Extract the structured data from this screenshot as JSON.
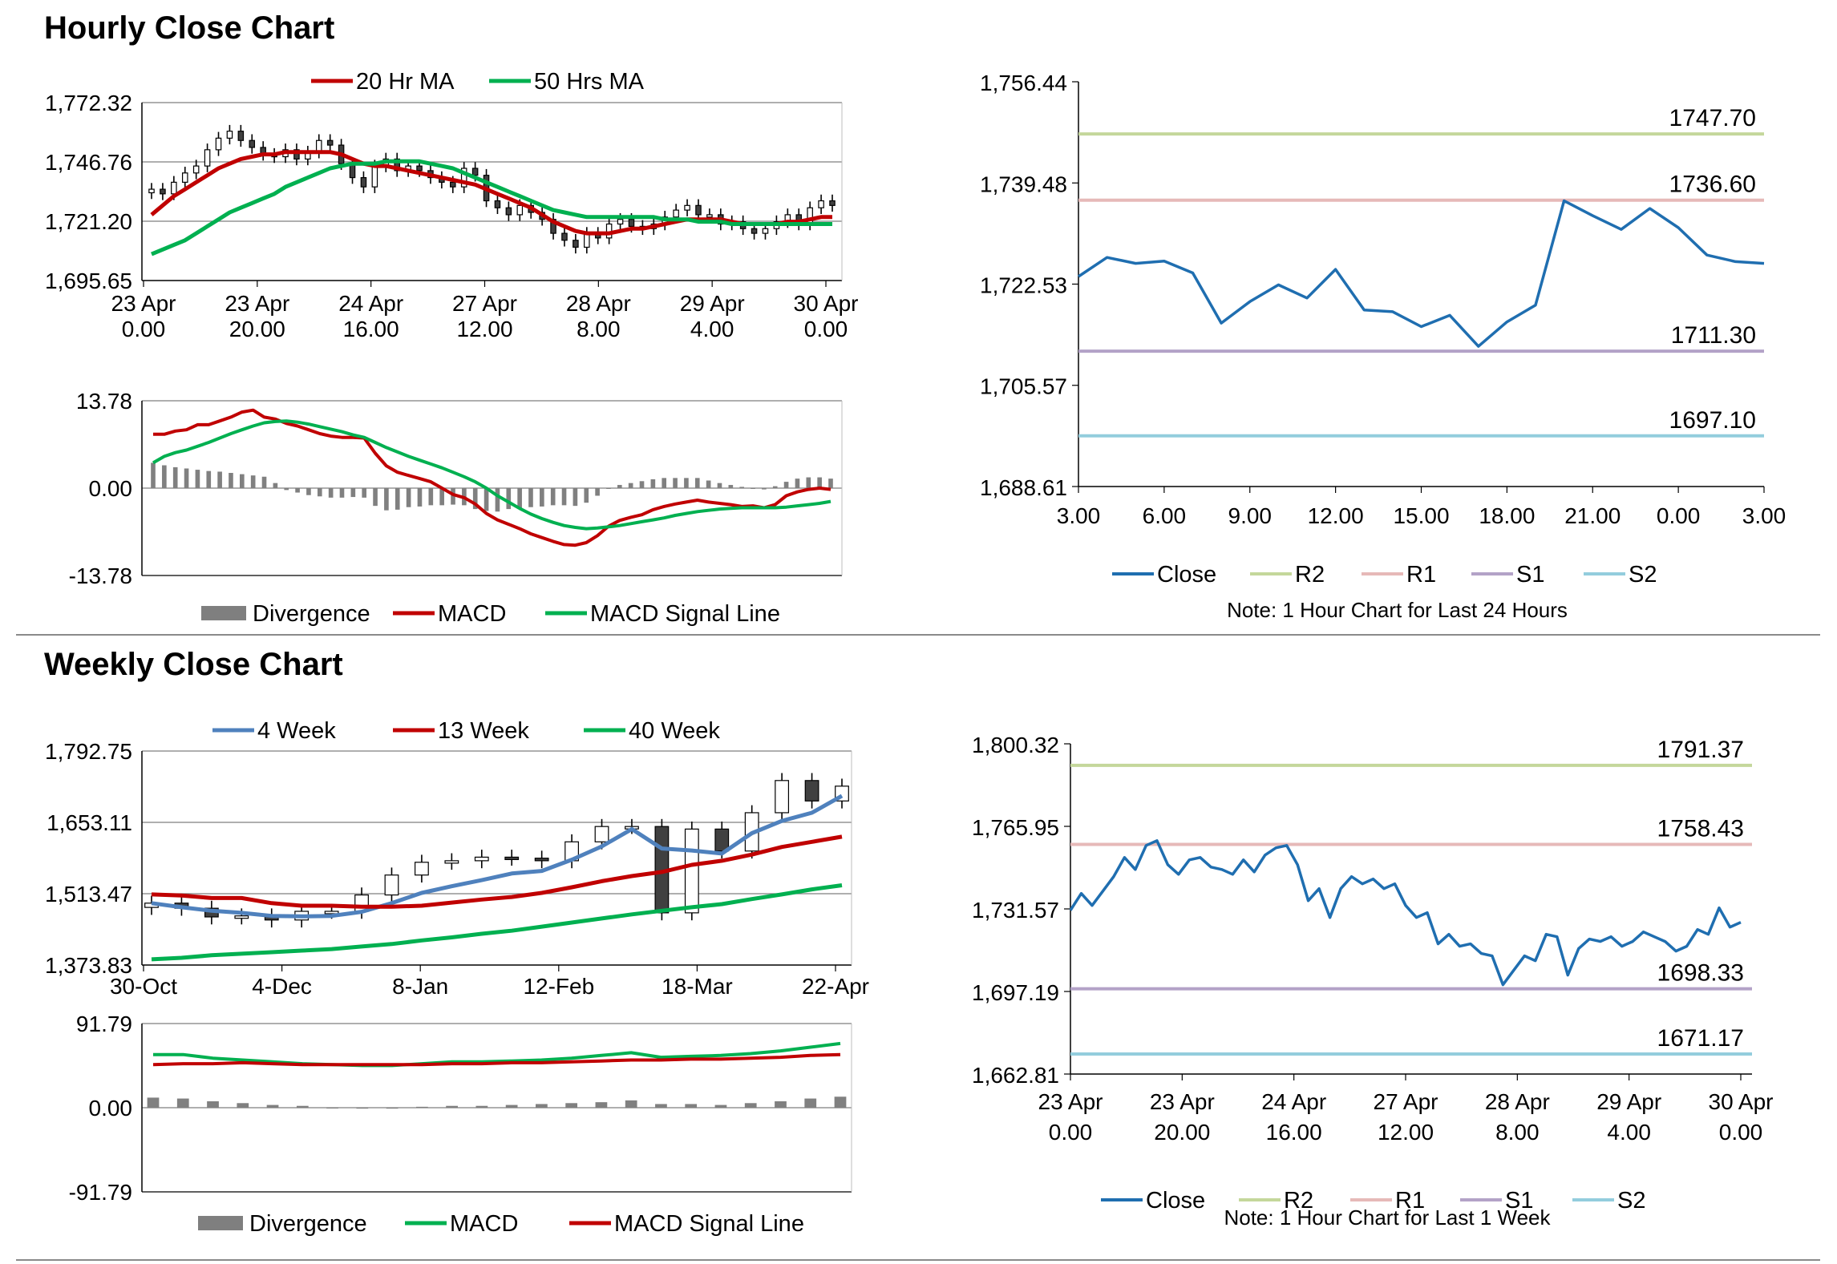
{
  "sections": {
    "hourly_title": "Hourly Close Chart",
    "weekly_title": "Weekly Close Chart"
  },
  "colors": {
    "ma_red": "#c00000",
    "ma_green": "#00b050",
    "ma_blue": "#4f81bd",
    "close_blue": "#1f6eb0",
    "r2": "#c4d79b",
    "r1": "#e6b9b8",
    "s1": "#b3a2c7",
    "s2": "#93cddd",
    "divergence": "#808080"
  },
  "legends": {
    "hourly_ma": [
      "20 Hr MA",
      "50 Hrs MA"
    ],
    "hourly_macd": [
      "Divergence",
      "MACD",
      "MACD Signal Line"
    ],
    "pivot": [
      "Close",
      "R2",
      "R1",
      "S1",
      "S2"
    ],
    "weekly_ma": [
      "4 Week",
      "13 Week",
      "40 Week"
    ],
    "weekly_macd": [
      "Divergence",
      "MACD",
      "MACD Signal Line"
    ]
  },
  "notes": {
    "hourly_24h": "Note: 1 Hour Chart for Last 24 Hours",
    "hourly_1w": "Note: 1 Hour Chart for Last 1 Week"
  },
  "chart_data": [
    {
      "id": "hourly_candles",
      "type": "candlestick",
      "legend": [
        "20 Hr MA",
        "50 Hrs MA"
      ],
      "y_ticks": [
        "1,772.32",
        "1,746.76",
        "1,721.20",
        "1,695.65"
      ],
      "ylim": [
        1695.65,
        1772.32
      ],
      "x_ticks": [
        [
          "23 Apr",
          "0.00"
        ],
        [
          "23 Apr",
          "20.00"
        ],
        [
          "24 Apr",
          "16.00"
        ],
        [
          "27 Apr",
          "12.00"
        ],
        [
          "28 Apr",
          "8.00"
        ],
        [
          "29 Apr",
          "4.00"
        ],
        [
          "30 Apr",
          "0.00"
        ]
      ],
      "close": [
        1735,
        1733,
        1738,
        1742,
        1745,
        1752,
        1757,
        1760,
        1756,
        1753,
        1750,
        1749,
        1752,
        1748,
        1751,
        1756,
        1754,
        1746,
        1740,
        1736,
        1745,
        1748,
        1743,
        1745,
        1743,
        1740,
        1738,
        1736,
        1744,
        1741,
        1730,
        1727,
        1724,
        1728,
        1725,
        1722,
        1716,
        1713,
        1710,
        1716,
        1714,
        1720,
        1722,
        1719,
        1718,
        1720,
        1723,
        1726,
        1728,
        1724,
        1724,
        1720,
        1721,
        1718,
        1716,
        1718,
        1721,
        1724,
        1720,
        1727,
        1730,
        1728
      ],
      "ma20": [
        1724,
        1728,
        1732,
        1735,
        1738,
        1741,
        1744,
        1746,
        1748,
        1749,
        1750,
        1750,
        1751,
        1751,
        1751,
        1751,
        1751,
        1750,
        1748,
        1746,
        1745,
        1745,
        1744,
        1743,
        1742,
        1741,
        1740,
        1739,
        1738,
        1737,
        1735,
        1733,
        1731,
        1729,
        1727,
        1724,
        1721,
        1719,
        1717,
        1716,
        1716,
        1716,
        1717,
        1718,
        1718,
        1719,
        1720,
        1721,
        1722,
        1722,
        1722,
        1722,
        1721,
        1720,
        1720,
        1720,
        1720,
        1721,
        1721,
        1722,
        1723,
        1723
      ],
      "ma50": [
        1707,
        1709,
        1711,
        1713,
        1716,
        1719,
        1722,
        1725,
        1727,
        1729,
        1731,
        1733,
        1736,
        1738,
        1740,
        1742,
        1744,
        1745,
        1746,
        1746,
        1746,
        1747,
        1747,
        1747,
        1747,
        1746,
        1745,
        1744,
        1742,
        1740,
        1738,
        1736,
        1734,
        1732,
        1730,
        1728,
        1726,
        1725,
        1724,
        1723,
        1723,
        1723,
        1723,
        1723,
        1723,
        1723,
        1722,
        1722,
        1722,
        1721,
        1721,
        1721,
        1720,
        1720,
        1720,
        1720,
        1720,
        1720,
        1720,
        1720,
        1720,
        1720
      ]
    },
    {
      "id": "hourly_macd",
      "type": "line",
      "legend": [
        "Divergence",
        "MACD",
        "MACD Signal Line"
      ],
      "y_ticks": [
        "13.78",
        "0.00",
        "-13.78"
      ],
      "ylim": [
        -13.78,
        13.78
      ],
      "macd": [
        8.5,
        8.5,
        9,
        9.2,
        10,
        10,
        10.6,
        11.2,
        12,
        12.3,
        11.2,
        10.9,
        10.2,
        9.8,
        9.2,
        8.6,
        8.2,
        8,
        8,
        7.9,
        5.5,
        3.5,
        2.5,
        2,
        1.5,
        1,
        0,
        -1,
        -1.5,
        -2.5,
        -4,
        -5,
        -5.7,
        -6.4,
        -7.2,
        -7.8,
        -8.4,
        -8.9,
        -9,
        -8.6,
        -7.5,
        -6,
        -5.1,
        -4.6,
        -4.2,
        -3.4,
        -2.9,
        -2.5,
        -2.2,
        -1.9,
        -2.2,
        -2.4,
        -2.6,
        -2.9,
        -2.8,
        -3.1,
        -2.6,
        -1.2,
        -0.6,
        -0.2,
        0,
        -0.2
      ],
      "signal": [
        4,
        5,
        5.6,
        6,
        6.6,
        7.2,
        7.9,
        8.6,
        9.2,
        9.8,
        10.3,
        10.5,
        10.6,
        10.4,
        10.1,
        9.7,
        9.3,
        8.9,
        8.4,
        8,
        7.2,
        6.4,
        5.7,
        5,
        4.4,
        3.8,
        3.2,
        2.5,
        1.8,
        1,
        0,
        -1.2,
        -2.2,
        -3.2,
        -4.1,
        -4.8,
        -5.4,
        -5.9,
        -6.2,
        -6.4,
        -6.3,
        -6.1,
        -5.9,
        -5.6,
        -5.3,
        -5,
        -4.7,
        -4.3,
        -4,
        -3.7,
        -3.5,
        -3.3,
        -3.2,
        -3.1,
        -3.1,
        -3.1,
        -3.1,
        -3,
        -2.8,
        -2.6,
        -2.4,
        -2.1
      ],
      "divergence": [
        4,
        3.6,
        3.3,
        3.1,
        2.9,
        2.7,
        2.6,
        2.4,
        2.2,
        2,
        1.8,
        0.8,
        -0.3,
        -0.7,
        -1.1,
        -1.3,
        -1.5,
        -1.5,
        -1.4,
        -1.5,
        -2.8,
        -3.5,
        -3.4,
        -3,
        -2.9,
        -2.7,
        -2.7,
        -2.6,
        -2.7,
        -3.3,
        -3.6,
        -3.7,
        -3.3,
        -3.1,
        -3,
        -2.9,
        -2.7,
        -2.7,
        -2.8,
        -2.3,
        -1.2,
        0,
        0.5,
        0.8,
        1.1,
        1.4,
        1.6,
        1.6,
        1.6,
        1.6,
        1.2,
        0.8,
        0.5,
        0.2,
        0,
        -0.2,
        0.3,
        1,
        1.5,
        1.7,
        1.7,
        1.5
      ]
    },
    {
      "id": "pivot_24h",
      "type": "line",
      "legend": [
        "Close",
        "R2",
        "R1",
        "S1",
        "S2"
      ],
      "y_ticks": [
        "1,756.44",
        "1,739.48",
        "1,722.53",
        "1,705.57",
        "1,688.61"
      ],
      "ylim": [
        1688.61,
        1756.44
      ],
      "x_ticks": [
        "3.00",
        "6.00",
        "9.00",
        "12.00",
        "15.00",
        "18.00",
        "21.00",
        "0.00",
        "3.00"
      ],
      "x": [
        3,
        4,
        5,
        6,
        7,
        8,
        9,
        10,
        11,
        12,
        13,
        14,
        15,
        16,
        17,
        18,
        19,
        20,
        21,
        22,
        23,
        24,
        25,
        26,
        27
      ],
      "close": [
        1723.8,
        1727.0,
        1726.0,
        1726.4,
        1724.4,
        1716.0,
        1719.6,
        1722.4,
        1720.2,
        1725.0,
        1718.2,
        1717.9,
        1715.4,
        1717.3,
        1712.1,
        1716.2,
        1719.0,
        1736.5,
        1734.0,
        1731.7,
        1735.2,
        1732.0,
        1727.4,
        1726.3,
        1726.0
      ],
      "levels": {
        "R2": "1747.70",
        "R1": "1736.60",
        "S1": "1711.30",
        "S2": "1697.10"
      },
      "note": "Note: 1 Hour Chart for Last 24 Hours"
    },
    {
      "id": "weekly_candles",
      "type": "candlestick",
      "legend": [
        "4 Week",
        "13 Week",
        "40 Week"
      ],
      "y_ticks": [
        "1,792.75",
        "1,653.11",
        "1,513.47",
        "1,373.83"
      ],
      "ylim": [
        1373.83,
        1792.75
      ],
      "x_ticks": [
        "30-Oct",
        "4-Dec",
        "8-Jan",
        "12-Feb",
        "18-Mar",
        "22-Apr"
      ],
      "close": [
        1495,
        1485,
        1468,
        1470,
        1462,
        1479,
        1479,
        1511,
        1550,
        1575,
        1578,
        1585,
        1583,
        1578,
        1615,
        1645,
        1645,
        1476,
        1640,
        1597,
        1672,
        1735,
        1695,
        1724
      ],
      "w4": [
        1495,
        1487,
        1480,
        1476,
        1470,
        1469,
        1470,
        1478,
        1495,
        1515,
        1528,
        1540,
        1553,
        1558,
        1580,
        1606,
        1640,
        1602,
        1598,
        1592,
        1632,
        1656,
        1672,
        1705
      ],
      "w13": [
        1512,
        1510,
        1505,
        1505,
        1495,
        1490,
        1490,
        1488,
        1488,
        1490,
        1496,
        1502,
        1507,
        1515,
        1526,
        1538,
        1548,
        1556,
        1570,
        1578,
        1590,
        1605,
        1615,
        1625
      ],
      "w40": [
        1385,
        1388,
        1393,
        1396,
        1399,
        1402,
        1405,
        1410,
        1415,
        1422,
        1428,
        1435,
        1441,
        1449,
        1457,
        1465,
        1473,
        1480,
        1487,
        1493,
        1503,
        1512,
        1522,
        1530
      ]
    },
    {
      "id": "weekly_macd",
      "type": "line",
      "legend": [
        "Divergence",
        "MACD",
        "MACD Signal Line"
      ],
      "y_ticks": [
        "91.79",
        "0.00",
        "-91.79"
      ],
      "ylim": [
        -91.79,
        91.79
      ],
      "macd": [
        58,
        58,
        54,
        52,
        50,
        48,
        47,
        46,
        46,
        48,
        50,
        50,
        51,
        52,
        54,
        57,
        60,
        55,
        56,
        57,
        59,
        62,
        66,
        70
      ],
      "signal": [
        47,
        48,
        48,
        49,
        48,
        47,
        47,
        47,
        47,
        47,
        48,
        48,
        49,
        49,
        50,
        51,
        52,
        52,
        53,
        53,
        54,
        55,
        57,
        58
      ],
      "divergence": [
        11,
        10,
        7,
        5,
        3,
        2,
        0,
        -1,
        -1,
        1,
        2,
        2,
        3,
        4,
        5,
        6,
        8,
        4,
        4,
        3,
        5,
        7,
        10,
        12
      ]
    },
    {
      "id": "pivot_1w",
      "type": "line",
      "legend": [
        "Close",
        "R2",
        "R1",
        "S1",
        "S2"
      ],
      "y_ticks": [
        "1,800.32",
        "1,765.95",
        "1,731.57",
        "1,697.19",
        "1,662.81"
      ],
      "ylim": [
        1662.81,
        1800.32
      ],
      "x_ticks": [
        [
          "23 Apr",
          "0.00"
        ],
        [
          "23 Apr",
          "20.00"
        ],
        [
          "24 Apr",
          "16.00"
        ],
        [
          "27 Apr",
          "12.00"
        ],
        [
          "28 Apr",
          "8.00"
        ],
        [
          "29 Apr",
          "4.00"
        ],
        [
          "30 Apr",
          "0.00"
        ]
      ],
      "close": [
        1731,
        1738,
        1733,
        1739,
        1745,
        1753,
        1748,
        1758,
        1760,
        1750,
        1746,
        1752,
        1753,
        1749,
        1748,
        1746,
        1752,
        1747,
        1754,
        1757,
        1758,
        1750,
        1735,
        1740,
        1728,
        1740,
        1745,
        1742,
        1744,
        1740,
        1742,
        1733,
        1728,
        1730,
        1717,
        1721,
        1716,
        1717,
        1713,
        1712,
        1700,
        1706,
        1712,
        1710,
        1721,
        1720,
        1704,
        1715,
        1719,
        1718,
        1720,
        1716,
        1718,
        1722,
        1720,
        1718,
        1714,
        1716,
        1723,
        1721,
        1732,
        1724,
        1726
      ],
      "levels": {
        "R2": "1791.37",
        "R1": "1758.43",
        "S1": "1698.33",
        "S2": "1671.17"
      },
      "note": "Note: 1 Hour Chart for Last 1 Week"
    }
  ]
}
